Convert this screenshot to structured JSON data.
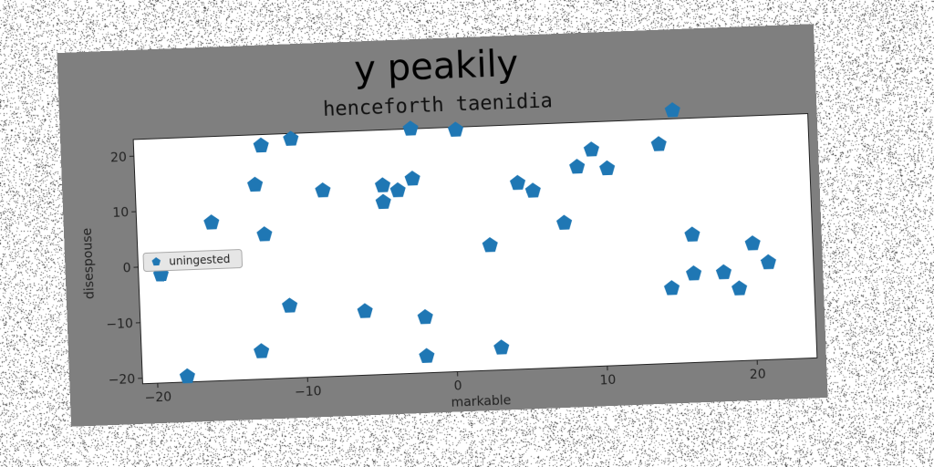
{
  "chart_data": {
    "type": "scatter",
    "title": "y peakily",
    "subtitle": "henceforth taenidia",
    "xlabel": "markable",
    "ylabel": "disespouse",
    "xlim": [
      -21,
      24
    ],
    "ylim": [
      -21,
      23
    ],
    "xticks": [
      -20,
      -10,
      0,
      10,
      20
    ],
    "yticks": [
      -20,
      -10,
      0,
      10,
      20
    ],
    "grid": false,
    "legend_position": "center-left",
    "marker": "pentagon",
    "series": [
      {
        "name": "uningested",
        "color": "#1f77b4",
        "points": [
          {
            "x": -18,
            "y": -20
          },
          {
            "x": -19.5,
            "y": -1.5
          },
          {
            "x": -16,
            "y": 7.5
          },
          {
            "x": -13,
            "y": 14
          },
          {
            "x": -12.5,
            "y": 21
          },
          {
            "x": -12.5,
            "y": 5
          },
          {
            "x": -13,
            "y": -16
          },
          {
            "x": -11,
            "y": -8
          },
          {
            "x": -10.5,
            "y": 22
          },
          {
            "x": -8.5,
            "y": 12.5
          },
          {
            "x": -6,
            "y": -9.5
          },
          {
            "x": -4.5,
            "y": 13
          },
          {
            "x": -4.5,
            "y": 10
          },
          {
            "x": -3.5,
            "y": 12
          },
          {
            "x": -2.5,
            "y": 14
          },
          {
            "x": -2.5,
            "y": 23
          },
          {
            "x": -2,
            "y": -11
          },
          {
            "x": -2,
            "y": -18
          },
          {
            "x": 0.5,
            "y": 22.5
          },
          {
            "x": 2.5,
            "y": 1.5
          },
          {
            "x": 3,
            "y": -17
          },
          {
            "x": 4.5,
            "y": 12.5
          },
          {
            "x": 5.5,
            "y": 11
          },
          {
            "x": 7.5,
            "y": 5
          },
          {
            "x": 8.5,
            "y": 15
          },
          {
            "x": 9.5,
            "y": 18
          },
          {
            "x": 10.5,
            "y": 14.5
          },
          {
            "x": 14,
            "y": 18.5
          },
          {
            "x": 14.5,
            "y": -7.5
          },
          {
            "x": 15,
            "y": 24.5
          },
          {
            "x": 16,
            "y": 2
          },
          {
            "x": 16,
            "y": -5
          },
          {
            "x": 18,
            "y": -5
          },
          {
            "x": 19,
            "y": -8
          },
          {
            "x": 20,
            "y": 0
          },
          {
            "x": 21,
            "y": -3.5
          }
        ]
      }
    ]
  }
}
